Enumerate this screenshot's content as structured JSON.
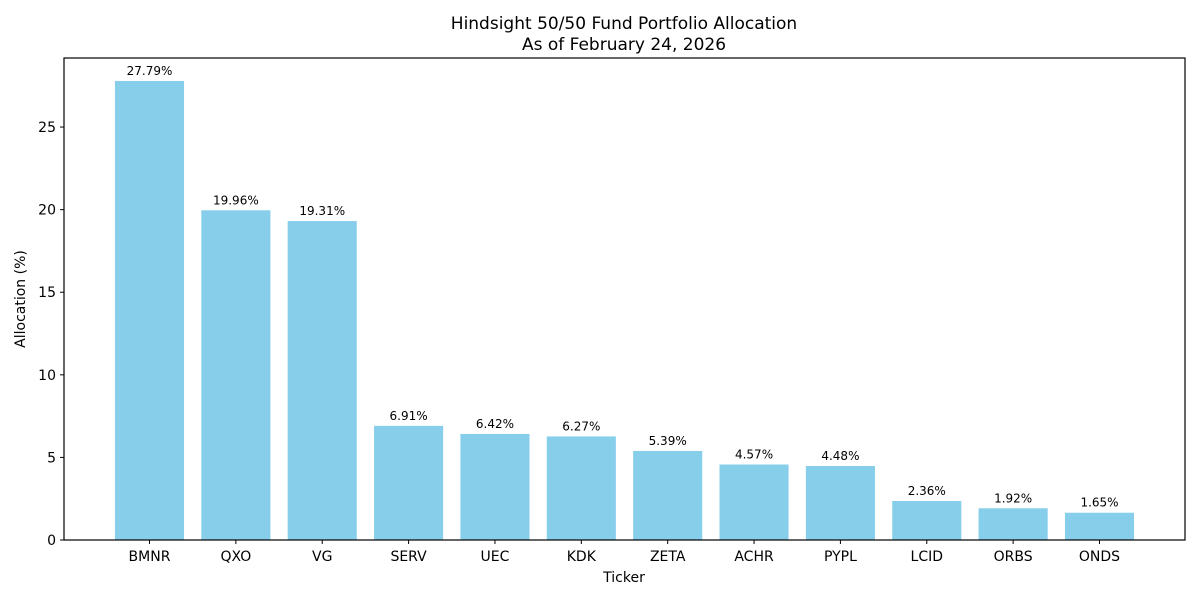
{
  "chart_data": {
    "type": "bar",
    "title": "Hindsight 50/50 Fund Portfolio Allocation",
    "subtitle": "As of February 24, 2026",
    "xlabel": "Ticker",
    "ylabel": "Allocation (%)",
    "categories": [
      "BMNR",
      "QXO",
      "VG",
      "SERV",
      "UEC",
      "KDK",
      "ZETA",
      "ACHR",
      "PYPL",
      "LCID",
      "ORBS",
      "ONDS"
    ],
    "values": [
      27.79,
      19.96,
      19.31,
      6.91,
      6.42,
      6.27,
      5.39,
      4.57,
      4.48,
      2.36,
      1.92,
      1.65
    ],
    "data_labels": [
      "27.79%",
      "19.96%",
      "19.31%",
      "6.91%",
      "6.42%",
      "6.27%",
      "5.39%",
      "4.57%",
      "4.48%",
      "2.36%",
      "1.92%",
      "1.65%"
    ],
    "ylim": [
      0,
      29.18
    ],
    "yticks": [
      0,
      5,
      10,
      15,
      20,
      25
    ],
    "grid": false,
    "bar_color": "#87CEEB"
  }
}
